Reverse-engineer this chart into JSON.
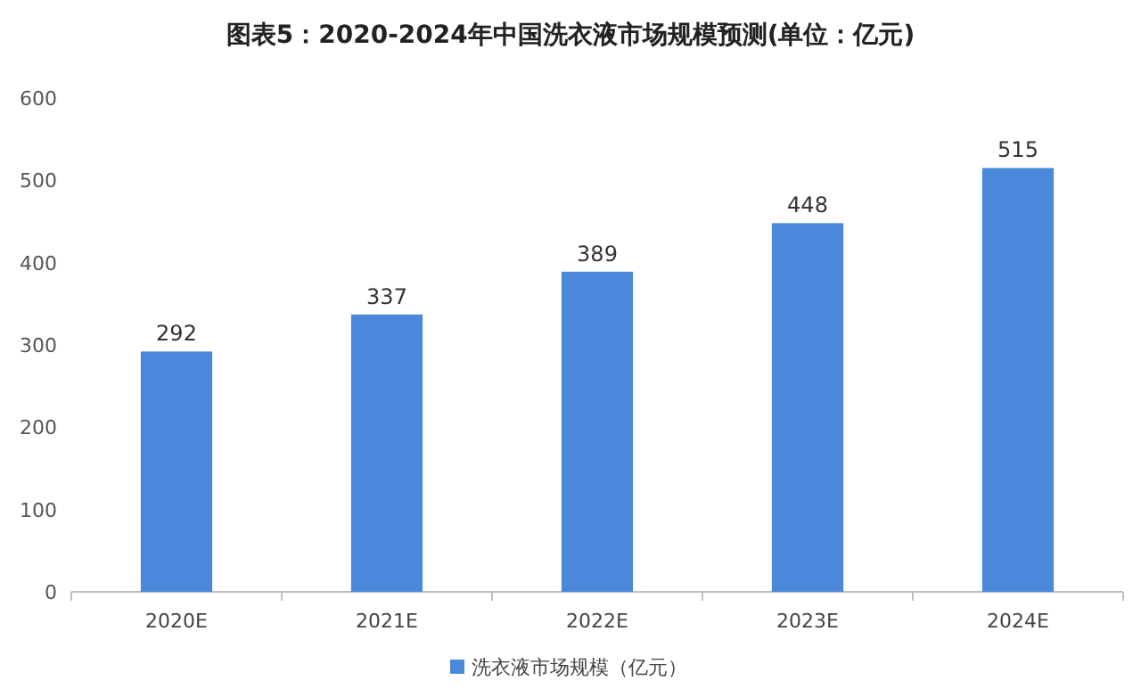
{
  "chart_data": {
    "type": "bar",
    "title": "图表5：2020-2024年中国洗衣液市场规模预测(单位：亿元)",
    "categories": [
      "2020E",
      "2021E",
      "2022E",
      "2023E",
      "2024E"
    ],
    "series": [
      {
        "name": "洗衣液市场规模（亿元）",
        "color": "#4a88dc",
        "values": [
          292,
          337,
          389,
          448,
          515
        ]
      }
    ],
    "ylim": [
      0,
      600
    ],
    "yticks": [
      0,
      100,
      200,
      300,
      400,
      500,
      600
    ],
    "data_labels": true,
    "legend": "bottom",
    "grid": false
  }
}
